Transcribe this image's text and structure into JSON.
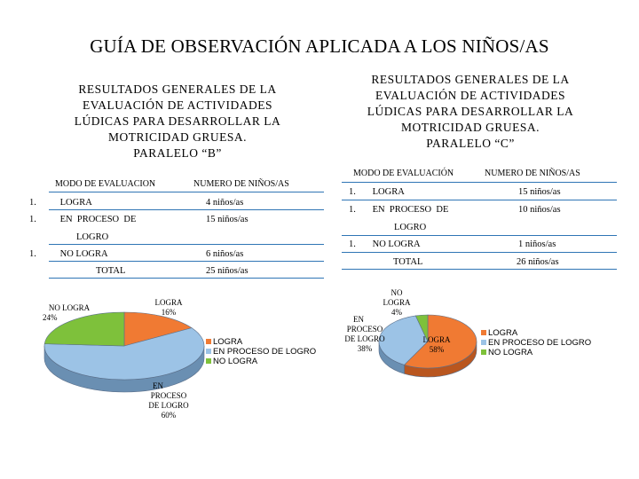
{
  "title": "GUÍA DE OBSERVACIÓN APLICADA A LOS NIÑOS/AS",
  "paralelo_b": {
    "subtitle_lines": [
      "RESULTADOS GENERALES DE LA",
      "EVALUACIÓN DE ACTIVIDADES",
      "LÚDICAS PARA DESARROLLAR LA",
      "MOTRICIDAD GRUESA.",
      "PARALELO “B”"
    ],
    "table": {
      "col1": "MODO DE EVALUACION",
      "col2": "NUMERO DE NIÑOS/AS",
      "rows": [
        {
          "num": "1.",
          "label": "LOGRA",
          "value": "4 niños/as"
        },
        {
          "num": "1.",
          "label": "EN  PROCESO  DE",
          "label2": "LOGRO",
          "value": "15 niños/as"
        },
        {
          "num": "1.",
          "label": "NO LOGRA",
          "value": "6 niños/as"
        }
      ],
      "total_label": "TOTAL",
      "total_value": "25 niños/as"
    }
  },
  "paralelo_c": {
    "subtitle_lines": [
      "RESULTADOS GENERALES DE LA",
      "EVALUACIÓN DE ACTIVIDADES",
      "LÚDICAS PARA DESARROLLAR LA",
      "MOTRICIDAD GRUESA.",
      "PARALELO “C”"
    ],
    "table": {
      "col1": "MODO DE EVALUACIÓN",
      "col2": "NUMERO DE NIÑOS/AS",
      "rows": [
        {
          "num": "1.",
          "label": "LOGRA",
          "value": "15 niños/as"
        },
        {
          "num": "1.",
          "label": "EN  PROCESO  DE",
          "label2": "LOGRO",
          "value": "10 niños/as"
        },
        {
          "num": "1.",
          "label": "NO LOGRA",
          "value": "1  niños/as"
        }
      ],
      "total_label": "TOTAL",
      "total_value": "26 niños/as"
    }
  },
  "colors": {
    "logra": "#f07a33",
    "en_proceso": "#9cc3e6",
    "no_logra": "#7ec13b",
    "rule": "#2f75b5"
  },
  "chart_data": [
    {
      "type": "pie",
      "title": "",
      "categories": [
        "LOGRA",
        "EN PROCESO DE LOGRO",
        "NO LOGRA"
      ],
      "values": [
        16,
        60,
        24
      ],
      "data_labels": [
        [
          "LOGRA",
          "16%"
        ],
        [
          "EN",
          "PROCESO",
          "DE LOGRO",
          "60%"
        ],
        [
          "NO LOGRA",
          "24%"
        ]
      ],
      "legend": [
        "LOGRA",
        "EN PROCESO DE LOGRO",
        "NO LOGRA"
      ],
      "legend_position": "right",
      "style": "3d"
    },
    {
      "type": "pie",
      "title": "",
      "categories": [
        "LOGRA",
        "EN PROCESO DE LOGRO",
        "NO LOGRA"
      ],
      "values": [
        58,
        38,
        4
      ],
      "data_labels": [
        [
          "LOGRA",
          "58%"
        ],
        [
          "EN",
          "PROCESO",
          "DE LOGRO",
          "38%"
        ],
        [
          "NO",
          "LOGRA",
          "4%"
        ]
      ],
      "legend": [
        "LOGRA",
        "EN PROCESO DE LOGRO",
        "NO LOGRA"
      ],
      "legend_position": "right",
      "style": "3d"
    }
  ]
}
